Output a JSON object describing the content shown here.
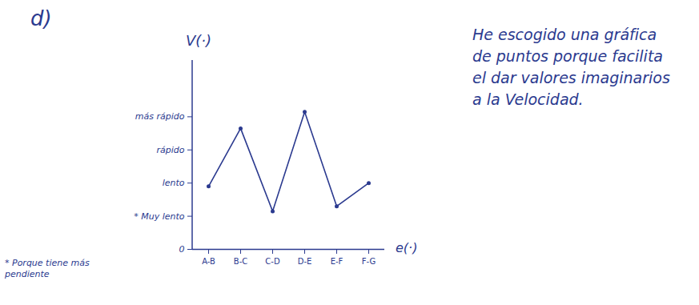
{
  "chart_data": {
    "type": "line",
    "title": "d)",
    "y_label": "V(·)",
    "x_label": "e(·)",
    "annotations": [
      "* Porque tiene más pendiente",
      "He escogido una gráfica de puntos porque facilita el dar valores imaginarios a la Velocidad."
    ],
    "categories": [
      "A-B",
      "B-C",
      "C-D",
      "D-E",
      "E-F",
      "F-G"
    ],
    "values": [
      1.9,
      3.65,
      1.15,
      4.15,
      1.3,
      2.0
    ],
    "ylim": [
      0,
      5.7
    ],
    "yticks": [
      0,
      {
        "value": 1,
        "label": "* Muy lento"
      },
      {
        "value": 2,
        "label": "lento"
      },
      {
        "value": 3,
        "label": "rápido"
      },
      {
        "value": 4,
        "label": "más rápido"
      }
    ],
    "color": "#2b3a8f",
    "marker": "circle",
    "grid": false
  }
}
